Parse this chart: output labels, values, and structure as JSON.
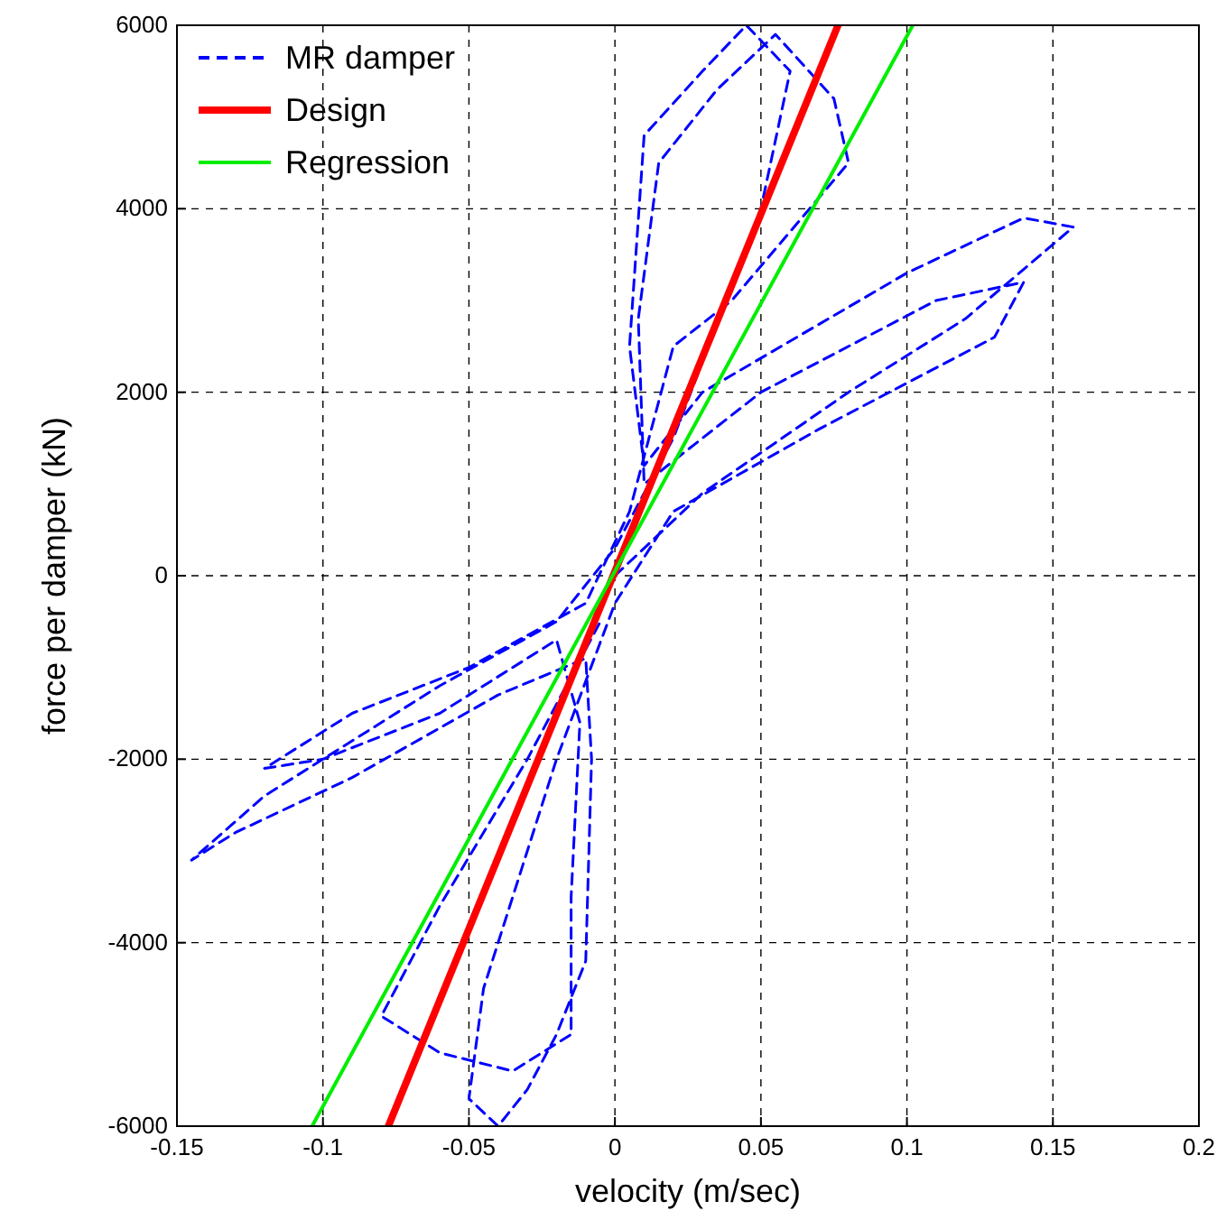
{
  "chart_data": {
    "type": "line",
    "xlabel": "velocity (m/sec)",
    "ylabel": "force per damper (kN)",
    "xlim": [
      -0.15,
      0.2
    ],
    "xticks": [
      -0.15,
      -0.1,
      -0.05,
      0,
      0.05,
      0.1,
      0.15,
      0.2
    ],
    "ylim": [
      -6000,
      6000
    ],
    "yticks": [
      -6000,
      -4000,
      -2000,
      0,
      2000,
      4000,
      6000
    ],
    "grid": true,
    "legend": "top left",
    "marker": "none",
    "series": [
      {
        "name": "MR damper",
        "color": "#0000ff",
        "line_style": "dashed",
        "x": [
          0,
          0.03,
          0.08,
          0.12,
          0.157,
          0.14,
          0.1,
          0.03,
          0.01,
          0.005,
          0.01,
          0.03,
          0.045,
          0.06,
          0.05,
          0.02,
          0,
          -0.02,
          -0.06,
          -0.1,
          -0.12,
          -0.145,
          -0.13,
          -0.09,
          -0.04,
          -0.01,
          -0.008,
          -0.01,
          -0.02,
          -0.03,
          -0.04,
          -0.05,
          -0.045,
          -0.02,
          0,
          0.02,
          0.07,
          0.13,
          0.14,
          0.11,
          0.05,
          0.01,
          0.008,
          0.015,
          0.035,
          0.055,
          0.075,
          0.08,
          0.04,
          0.02,
          0.005,
          -0.01,
          -0.05,
          -0.09,
          -0.12,
          -0.1,
          -0.06,
          -0.02,
          -0.012,
          -0.015,
          -0.015,
          -0.035,
          -0.06,
          -0.08,
          -0.06,
          -0.03,
          -0.005
        ],
        "values": [
          0,
          900,
          2000,
          2800,
          3800,
          3900,
          3300,
          2000,
          1200,
          2500,
          4800,
          5500,
          6000,
          5500,
          4000,
          1500,
          300,
          -500,
          -1200,
          -2000,
          -2400,
          -3100,
          -2800,
          -2200,
          -1300,
          -900,
          -2000,
          -4200,
          -5000,
          -5600,
          -6000,
          -5700,
          -4500,
          -2000,
          -300,
          700,
          1600,
          2600,
          3200,
          3000,
          2000,
          1000,
          2800,
          4500,
          5300,
          5900,
          5200,
          4500,
          3000,
          2500,
          700,
          -300,
          -1000,
          -1500,
          -2100,
          -2000,
          -1500,
          -700,
          -1600,
          -3500,
          -5000,
          -5400,
          -5200,
          -4800,
          -3600,
          -2000,
          -500
        ]
      },
      {
        "name": "Design",
        "color": "#ff0000",
        "line_style": "solid",
        "x": [
          -0.0776,
          0.0764
        ],
        "values": [
          -6000,
          6000
        ]
      },
      {
        "name": "Regression",
        "color": "#00ee00",
        "line_style": "solid",
        "x": [
          -0.1037,
          0.102
        ],
        "values": [
          -6000,
          6000
        ]
      }
    ]
  }
}
